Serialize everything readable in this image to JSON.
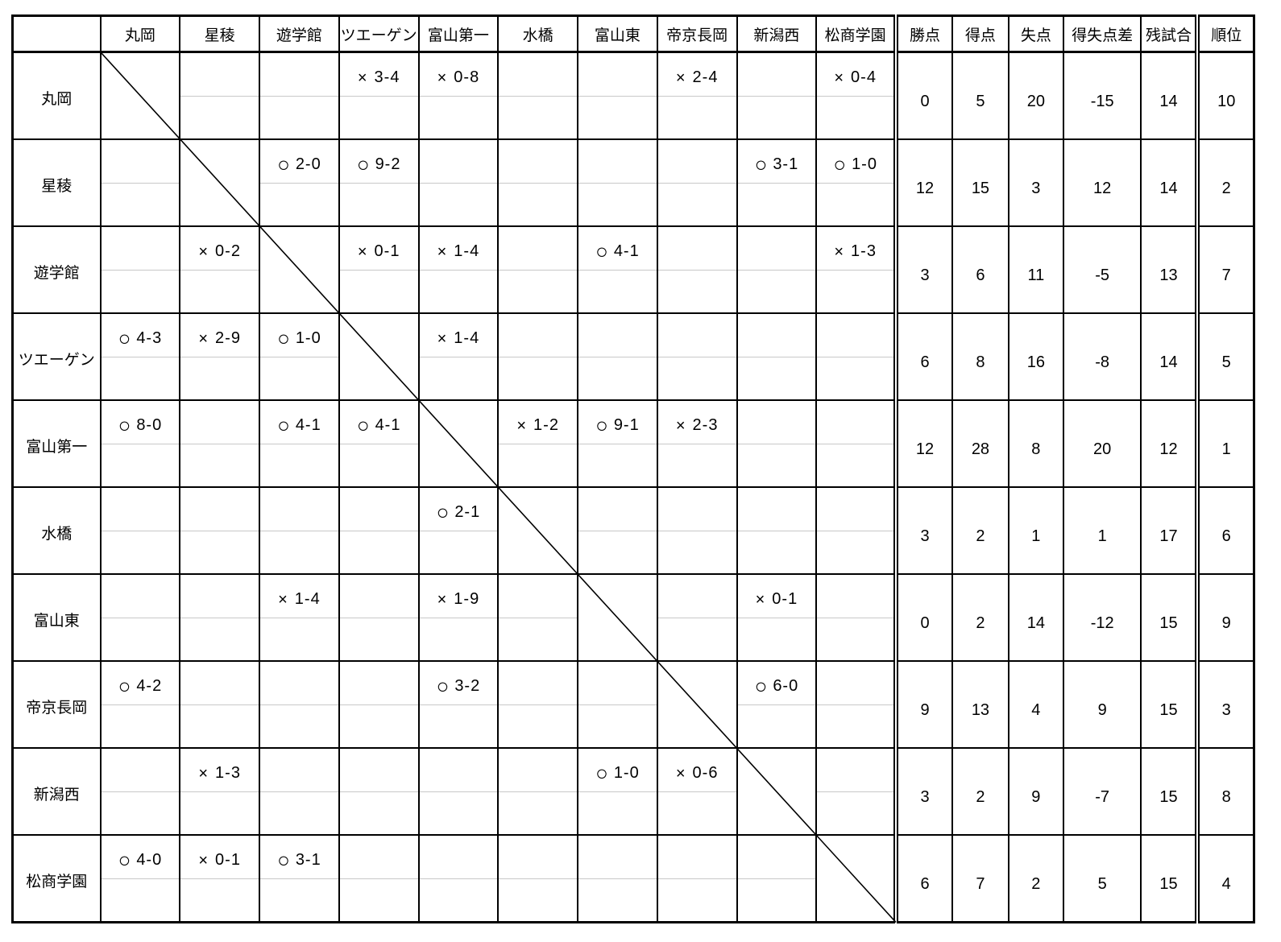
{
  "table": {
    "corner_label": "",
    "team_columns": [
      "丸岡",
      "星稜",
      "遊学館",
      "ツエーゲン",
      "富山第一",
      "水橋",
      "富山東",
      "帝京長岡",
      "新潟西",
      "松商学園"
    ],
    "stat_columns": [
      "勝点",
      "得点",
      "失点",
      "得失点差",
      "残試合",
      "順位"
    ],
    "win_symbol": "○",
    "lose_symbol": "×",
    "rows": [
      {
        "team": "丸岡",
        "results": [
          "",
          "",
          "",
          "× 3-4",
          "× 0-8",
          "",
          "",
          "× 2-4",
          "",
          "× 0-4"
        ],
        "stats": [
          "0",
          "5",
          "20",
          "-15",
          "14",
          "10"
        ]
      },
      {
        "team": "星稜",
        "results": [
          "",
          "",
          "○ 2-0",
          "○ 9-2",
          "",
          "",
          "",
          "",
          "○ 3-1",
          "○ 1-0"
        ],
        "stats": [
          "12",
          "15",
          "3",
          "12",
          "14",
          "2"
        ]
      },
      {
        "team": "遊学館",
        "results": [
          "",
          "× 0-2",
          "",
          "× 0-1",
          "× 1-4",
          "",
          "○ 4-1",
          "",
          "",
          "× 1-3"
        ],
        "stats": [
          "3",
          "6",
          "11",
          "-5",
          "13",
          "7"
        ]
      },
      {
        "team": "ツエーゲン",
        "results": [
          "○ 4-3",
          "× 2-9",
          "○ 1-0",
          "",
          "× 1-4",
          "",
          "",
          "",
          "",
          ""
        ],
        "stats": [
          "6",
          "8",
          "16",
          "-8",
          "14",
          "5"
        ]
      },
      {
        "team": "富山第一",
        "results": [
          "○ 8-0",
          "",
          "○ 4-1",
          "○ 4-1",
          "",
          "× 1-2",
          "○ 9-1",
          "× 2-3",
          "",
          ""
        ],
        "stats": [
          "12",
          "28",
          "8",
          "20",
          "12",
          "1"
        ]
      },
      {
        "team": "水橋",
        "results": [
          "",
          "",
          "",
          "",
          "○ 2-1",
          "",
          "",
          "",
          "",
          ""
        ],
        "stats": [
          "3",
          "2",
          "1",
          "1",
          "17",
          "6"
        ]
      },
      {
        "team": "富山東",
        "results": [
          "",
          "",
          "× 1-4",
          "",
          "× 1-9",
          "",
          "",
          "",
          "× 0-1",
          ""
        ],
        "stats": [
          "0",
          "2",
          "14",
          "-12",
          "15",
          "9"
        ]
      },
      {
        "team": "帝京長岡",
        "results": [
          "○ 4-2",
          "",
          "",
          "",
          "○ 3-2",
          "",
          "",
          "",
          "○ 6-0",
          ""
        ],
        "stats": [
          "9",
          "13",
          "4",
          "9",
          "15",
          "3"
        ]
      },
      {
        "team": "新潟西",
        "results": [
          "",
          "× 1-3",
          "",
          "",
          "",
          "",
          "○ 1-0",
          "× 0-6",
          "",
          ""
        ],
        "stats": [
          "3",
          "2",
          "9",
          "-7",
          "15",
          "8"
        ]
      },
      {
        "team": "松商学園",
        "results": [
          "○ 4-0",
          "× 0-1",
          "○ 3-1",
          "",
          "",
          "",
          "",
          "",
          "",
          ""
        ],
        "stats": [
          "6",
          "7",
          "2",
          "5",
          "15",
          "4"
        ]
      }
    ]
  },
  "colors": {
    "border": "#000000",
    "sub_row_line": "#c8c8c8",
    "background": "#ffffff",
    "text": "#000000"
  }
}
